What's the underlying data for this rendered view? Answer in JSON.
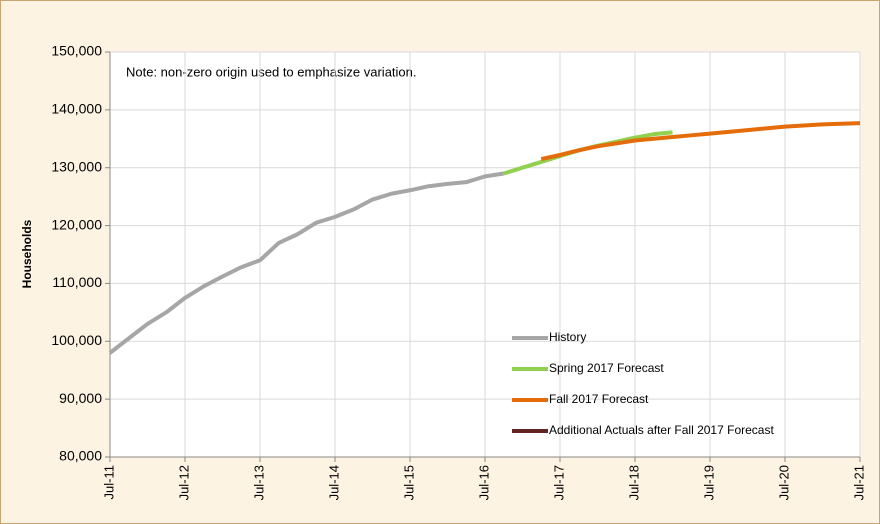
{
  "chart_data": {
    "type": "line",
    "annotation": "Note: non-zero origin used to emphasize variation.",
    "y_label": "Households",
    "x": [
      2011.5,
      2011.75,
      2012,
      2012.25,
      2012.5,
      2012.75,
      2013,
      2013.25,
      2013.5,
      2013.75,
      2014,
      2014.25,
      2014.5,
      2014.75,
      2015,
      2015.25,
      2015.5,
      2015.75,
      2016,
      2016.25,
      2016.5,
      2016.75,
      2017,
      2017.25,
      2017.5,
      2017.75,
      2018,
      2018.25,
      2018.5,
      2018.75,
      2019,
      2019.25,
      2019.5,
      2019.75,
      2020,
      2020.25,
      2020.5,
      2020.75,
      2021,
      2021.25,
      2021.5
    ],
    "series": [
      {
        "name": "History",
        "color": "#a6a6a6",
        "values": [
          98000,
          100500,
          103000,
          105000,
          107500,
          109500,
          111200,
          112800,
          114000,
          117000,
          118500,
          120500,
          121500,
          122800,
          124500,
          125500,
          126100,
          126800,
          127200,
          127500,
          128500,
          129000,
          null,
          null,
          null,
          null,
          null,
          null,
          null,
          null,
          null,
          null,
          null,
          null,
          null,
          null,
          null,
          null,
          null,
          null,
          null
        ]
      },
      {
        "name": "Spring 2017 Forecast",
        "color": "#92d050",
        "values": [
          null,
          null,
          null,
          null,
          null,
          null,
          null,
          null,
          null,
          null,
          null,
          null,
          null,
          null,
          null,
          null,
          null,
          null,
          null,
          null,
          null,
          129000,
          130000,
          131000,
          132000,
          133000,
          133800,
          134500,
          135200,
          135800,
          136100,
          null,
          null,
          null,
          null,
          null,
          null,
          null,
          null,
          null,
          null
        ]
      },
      {
        "name": "Fall 2017 Forecast",
        "color": "#e46c0a",
        "values": [
          null,
          null,
          null,
          null,
          null,
          null,
          null,
          null,
          null,
          null,
          null,
          null,
          null,
          null,
          null,
          null,
          null,
          null,
          null,
          null,
          null,
          null,
          null,
          131500,
          132200,
          133000,
          133700,
          134200,
          134700,
          135000,
          135300,
          135600,
          135900,
          136200,
          136500,
          136800,
          137100,
          137300,
          137500,
          137600,
          137700
        ]
      },
      {
        "name": "Additional Actuals after Fall 2017 Forecast",
        "color": "#632523",
        "values": [
          null,
          null,
          null,
          null,
          null,
          null,
          null,
          null,
          null,
          null,
          null,
          null,
          null,
          null,
          null,
          null,
          null,
          null,
          null,
          null,
          null,
          null,
          null,
          null,
          null,
          null,
          null,
          null,
          null,
          null,
          null,
          null,
          null,
          null,
          null,
          null,
          null,
          null,
          null,
          null,
          null
        ]
      }
    ],
    "xlim": [
      2011.5,
      2021.5
    ],
    "xticks": [
      {
        "value": 2011.5,
        "label": "Jul-11"
      },
      {
        "value": 2012.5,
        "label": "Jul-12"
      },
      {
        "value": 2013.5,
        "label": "Jul-13"
      },
      {
        "value": 2014.5,
        "label": "Jul-14"
      },
      {
        "value": 2015.5,
        "label": "Jul-15"
      },
      {
        "value": 2016.5,
        "label": "Jul-16"
      },
      {
        "value": 2017.5,
        "label": "Jul-17"
      },
      {
        "value": 2018.5,
        "label": "Jul-18"
      },
      {
        "value": 2019.5,
        "label": "Jul-19"
      },
      {
        "value": 2020.5,
        "label": "Jul-20"
      },
      {
        "value": 2021.5,
        "label": "Jul-21"
      }
    ],
    "ylim": [
      80000,
      150000
    ],
    "yticks": [
      {
        "value": 80000,
        "label": "80,000"
      },
      {
        "value": 90000,
        "label": "90,000"
      },
      {
        "value": 100000,
        "label": "100,000"
      },
      {
        "value": 110000,
        "label": "110,000"
      },
      {
        "value": 120000,
        "label": "120,000"
      },
      {
        "value": 130000,
        "label": "130,000"
      },
      {
        "value": 140000,
        "label": "140,000"
      },
      {
        "value": 150000,
        "label": "150,000"
      }
    ],
    "grid": true,
    "legend": "lower right"
  }
}
